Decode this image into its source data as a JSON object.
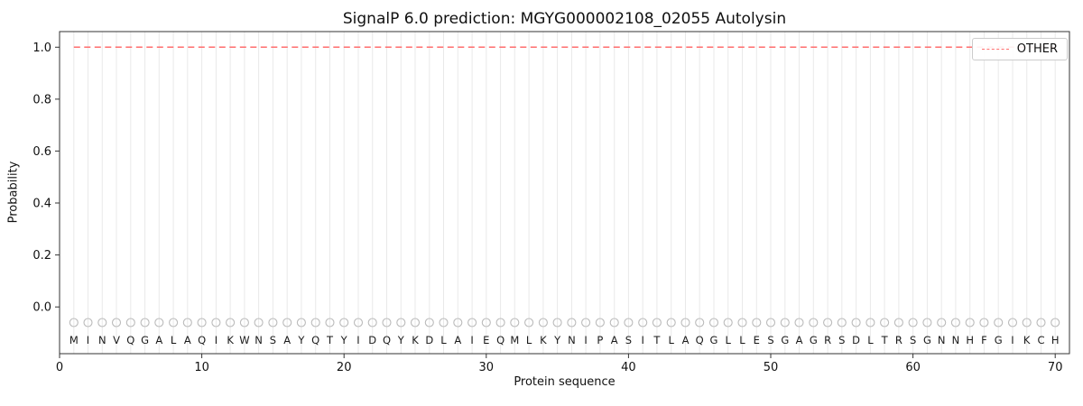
{
  "chart_data": {
    "type": "line",
    "title": "SignalP 6.0 prediction: MGYG000002108_02055 Autolysin",
    "xlabel": "Protein sequence",
    "ylabel": "Probability",
    "xlim": [
      0,
      71
    ],
    "ylim": [
      -0.18,
      1.06
    ],
    "xticks": [
      0,
      10,
      20,
      30,
      40,
      50,
      60,
      70
    ],
    "xtick_labels": [
      "0",
      "10",
      "20",
      "30",
      "40",
      "50",
      "60",
      "70"
    ],
    "yticks": [
      0,
      0.2,
      0.4,
      0.6,
      0.8,
      1.0
    ],
    "ytick_labels": [
      "0.0",
      "0.2",
      "0.4",
      "0.6",
      "0.8",
      "1.0"
    ],
    "grid": "vertical-line-per-residue",
    "legend": {
      "position": "upper-right",
      "entries": [
        {
          "label": "OTHER",
          "color": "#ff6e6e",
          "style": "dashed"
        }
      ]
    },
    "sequence": "MINVQGALAQIKWNSAYQTYIDQYKDLAIEQMLKYNIPASITLAQGLLESGAGRSDLTRSGNNHFGIKCH",
    "series": [
      {
        "name": "OTHER",
        "x_start": 1,
        "values": [
          1.0,
          1.0,
          1.0,
          1.0,
          1.0,
          1.0,
          1.0,
          1.0,
          1.0,
          1.0,
          1.0,
          1.0,
          1.0,
          1.0,
          1.0,
          1.0,
          1.0,
          1.0,
          1.0,
          1.0,
          1.0,
          1.0,
          1.0,
          1.0,
          1.0,
          1.0,
          1.0,
          1.0,
          1.0,
          1.0,
          1.0,
          1.0,
          1.0,
          1.0,
          1.0,
          1.0,
          1.0,
          1.0,
          1.0,
          1.0,
          1.0,
          1.0,
          1.0,
          1.0,
          1.0,
          1.0,
          1.0,
          1.0,
          1.0,
          1.0,
          1.0,
          1.0,
          1.0,
          1.0,
          1.0,
          1.0,
          1.0,
          1.0,
          1.0,
          1.0,
          1.0,
          1.0,
          1.0,
          1.0,
          1.0,
          1.0,
          1.0,
          1.0,
          1.0,
          1.0
        ]
      }
    ],
    "marker_row": {
      "shape": "open-circle",
      "y": -0.06
    },
    "letter_row_y": -0.128
  },
  "colors": {
    "background": "#ffffff",
    "frame": "#333333",
    "grid": "#e9e9e9",
    "tick_text": "#111111",
    "sequence_text": "#1a1a1a",
    "marker_stroke": "#bbbbbb",
    "other_line": "#ff6e6e"
  }
}
